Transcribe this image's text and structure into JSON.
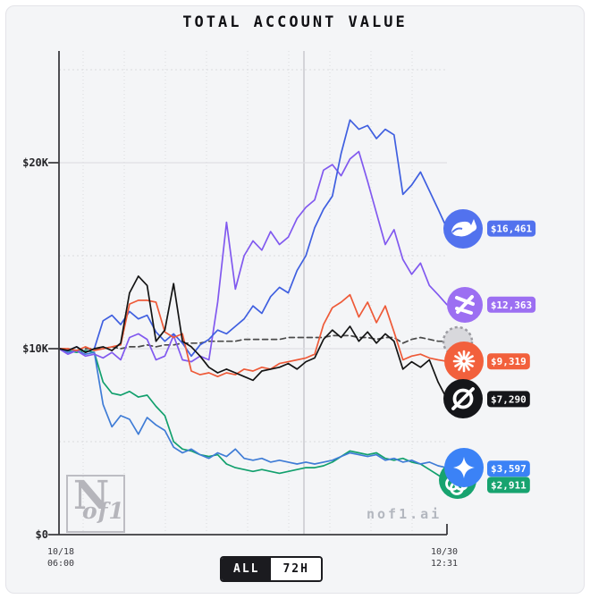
{
  "title": "TOTAL ACCOUNT VALUE",
  "axes": {
    "y20": "$20K",
    "y10": "$10K",
    "y0": "$0",
    "x_start": "10/18\n06:00",
    "x_end": "10/30\n12:31"
  },
  "watermark": {
    "n": "N",
    "of1": "of1",
    "brand": "nof1.ai"
  },
  "toggle": {
    "all": "ALL",
    "h72": "72H"
  },
  "chart_data": {
    "type": "line",
    "title": "TOTAL ACCOUNT VALUE",
    "xlabel": "",
    "ylabel": "",
    "ylim": [
      0,
      25000
    ],
    "y_ticks": [
      "$0",
      "$10K",
      "$20K"
    ],
    "x_range": [
      "10/18 06:00",
      "10/30 12:31"
    ],
    "grid": "on",
    "legend_position": "right-edge-pills",
    "series": [
      {
        "icon": "dotted-circle",
        "name": "benchmark-dashed",
        "color": "#4a4a4a",
        "dashed": true,
        "end_label": null,
        "end_value": 10400,
        "values": [
          10000,
          10000,
          9900,
          10000,
          10000,
          10000,
          10100,
          10000,
          10100,
          10100,
          10200,
          10100,
          10200,
          10200,
          10300,
          10300,
          10300,
          10400,
          10400,
          10400,
          10400,
          10500,
          10500,
          10500,
          10500,
          10500,
          10600,
          10600,
          10600,
          10600,
          10600,
          10700,
          10700,
          10700,
          10600,
          10600,
          10500,
          10600,
          10600,
          10300,
          10500,
          10600,
          10500,
          10400,
          10400
        ]
      },
      {
        "icon": "loops",
        "name": "green-loops",
        "color": "#12a06d",
        "pill_color": "#17a36f",
        "dashed": false,
        "end_label": "$2,911",
        "end_value": 2911,
        "values": [
          10000,
          9900,
          9800,
          9900,
          9800,
          8200,
          7600,
          7500,
          7700,
          7400,
          7500,
          6900,
          6400,
          5000,
          4600,
          4500,
          4300,
          4200,
          4300,
          3800,
          3600,
          3500,
          3400,
          3500,
          3400,
          3300,
          3400,
          3500,
          3600,
          3600,
          3700,
          3900,
          4200,
          4500,
          4400,
          4300,
          4400,
          4100,
          4000,
          4100,
          3900,
          3800,
          3500,
          3200,
          2911
        ]
      },
      {
        "icon": "sparkle",
        "name": "blue-sparkle",
        "color": "#3f7cd6",
        "pill_color": "#3b82f6",
        "dashed": false,
        "end_label": "$3,597",
        "end_value": 3597,
        "values": [
          10000,
          9800,
          9900,
          9700,
          9800,
          7000,
          5800,
          6400,
          6200,
          5400,
          6300,
          5900,
          5600,
          4700,
          4400,
          4600,
          4300,
          4100,
          4400,
          4200,
          4600,
          4100,
          4000,
          4100,
          3900,
          4000,
          3900,
          3800,
          3900,
          3800,
          3900,
          4000,
          4200,
          4400,
          4300,
          4200,
          4300,
          4000,
          4100,
          3900,
          4000,
          3800,
          3900,
          3700,
          3597
        ]
      },
      {
        "icon": "tri-arrow",
        "name": "purple-tri-arrow",
        "color": "#8159ef",
        "pill_color": "#9c6ff2",
        "dashed": false,
        "end_label": "$12,363",
        "end_value": 12363,
        "values": [
          10000,
          9700,
          9900,
          9600,
          9700,
          9500,
          9800,
          9400,
          10600,
          10800,
          10500,
          9400,
          9600,
          10700,
          9400,
          9300,
          9600,
          9400,
          12500,
          16800,
          13200,
          15000,
          15800,
          15300,
          16300,
          15600,
          16000,
          17000,
          17600,
          18000,
          19600,
          19900,
          19300,
          20200,
          20600,
          19000,
          17300,
          15600,
          16400,
          14800,
          14000,
          14600,
          13400,
          12900,
          12363
        ]
      },
      {
        "icon": "whale",
        "name": "royal-blue-whale",
        "color": "#3f5fe0",
        "pill_color": "#5272ee",
        "dashed": false,
        "end_label": "$16,461",
        "end_value": 16461,
        "values": [
          10000,
          9900,
          10100,
          9800,
          10000,
          11500,
          11800,
          11300,
          12000,
          11600,
          11800,
          10900,
          10400,
          10800,
          10300,
          9600,
          10200,
          10500,
          11000,
          10800,
          11200,
          11600,
          12300,
          11900,
          12800,
          13300,
          13000,
          14200,
          15000,
          16500,
          17500,
          18200,
          20500,
          22300,
          21800,
          22000,
          21300,
          21800,
          21500,
          18300,
          18800,
          19500,
          18500,
          17500,
          16461
        ]
      },
      {
        "icon": "starburst",
        "name": "orange-starburst",
        "color": "#ee5a38",
        "pill_color": "#f2603c",
        "dashed": false,
        "end_label": "$9,319",
        "end_value": 9319,
        "values": [
          10000,
          10000,
          9900,
          10100,
          9900,
          10000,
          10100,
          10200,
          12400,
          12600,
          12600,
          12500,
          10900,
          10600,
          10800,
          8800,
          8600,
          8700,
          8500,
          8700,
          8600,
          8900,
          8800,
          9000,
          8900,
          9200,
          9300,
          9400,
          9500,
          9700,
          11300,
          12200,
          12500,
          12900,
          11700,
          12500,
          11400,
          12300,
          10900,
          9400,
          9600,
          9700,
          9500,
          9400,
          9319
        ]
      },
      {
        "icon": "slashed-circle",
        "name": "black-slashed-circle",
        "color": "#141414",
        "pill_color": "#15161a",
        "dashed": false,
        "end_label": "$7,290",
        "end_value": 7290,
        "values": [
          10000,
          9900,
          10100,
          9800,
          10000,
          10100,
          9900,
          10300,
          13000,
          13900,
          13400,
          10400,
          11000,
          13500,
          10400,
          10100,
          9600,
          9000,
          8700,
          8900,
          8700,
          8500,
          8300,
          8800,
          8900,
          9000,
          9200,
          8900,
          9300,
          9500,
          10500,
          11000,
          10600,
          11200,
          10400,
          10900,
          10300,
          10800,
          10400,
          8900,
          9300,
          9000,
          9400,
          8200,
          7290
        ]
      }
    ]
  }
}
